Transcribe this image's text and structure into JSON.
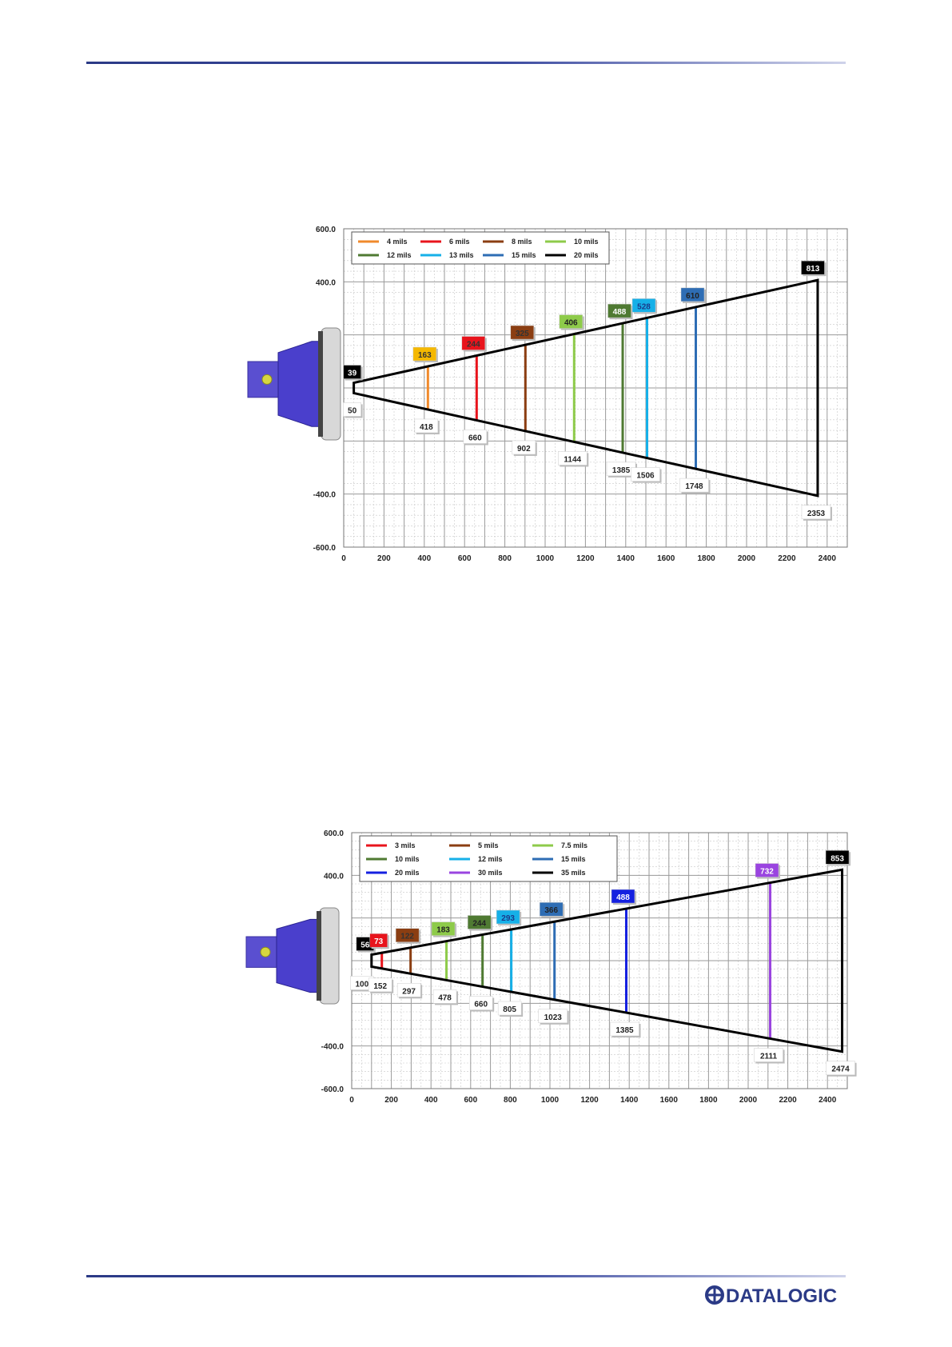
{
  "brand": {
    "name": "DATALOGIC",
    "color": "#2b3a86"
  },
  "chart_data": [
    {
      "type": "line",
      "x": {
        "range": [
          0,
          2500
        ],
        "ticks": [
          0,
          200,
          400,
          600,
          800,
          1000,
          1200,
          1400,
          1600,
          1800,
          2000,
          2200,
          2400
        ]
      },
      "y": {
        "range": [
          -600,
          600
        ],
        "ticks": [
          600,
          400,
          -400,
          -600
        ],
        "tick_labels": [
          "600.0",
          "400.0",
          "-400.0",
          "-600.0"
        ]
      },
      "grid": true,
      "legend_position": "top-left",
      "legend_columns": 4,
      "series": [
        {
          "name": "4 mils",
          "color": "#f08a2c",
          "top_label": "163",
          "bottom_label": "418",
          "x": 418,
          "label_color": "#f5b800",
          "label_text_color": "#333333"
        },
        {
          "name": "6 mils",
          "color": "#e8141c",
          "top_label": "244",
          "bottom_label": "660",
          "x": 660,
          "label_color": "#e8141c",
          "label_text_color": "#333333"
        },
        {
          "name": "8 mils",
          "color": "#8b3e12",
          "top_label": "325",
          "bottom_label": "902",
          "x": 902,
          "label_color": "#8b3e12",
          "label_text_color": "#333333"
        },
        {
          "name": "10 mils",
          "color": "#8ecb4a",
          "top_label": "406",
          "bottom_label": "1144",
          "x": 1144,
          "label_color": "#8ecb4a",
          "label_text_color": "#222222"
        },
        {
          "name": "12 mils",
          "color": "#4f7a32",
          "top_label": "488",
          "bottom_label": "1385",
          "x": 1385,
          "label_color": "#4f7a32",
          "label_text_color": "#ffffff"
        },
        {
          "name": "13 mils",
          "color": "#16b0e8",
          "top_label": "528",
          "bottom_label": "1506",
          "x": 1506,
          "label_color": "#16b0e8",
          "label_text_color": "#1b3a8a"
        },
        {
          "name": "15 mils",
          "color": "#2e6db4",
          "top_label": "610",
          "bottom_label": "1748",
          "x": 1748,
          "label_color": "#2e6db4",
          "label_text_color": "#222222"
        },
        {
          "name": "20 mils",
          "color": "#000000",
          "top_label": "813",
          "bottom_label": "2353",
          "x": 2353,
          "label_color": "#000000",
          "label_text_color": "#ffffff"
        }
      ],
      "envelope": {
        "near_x": 50,
        "far_x": 2353,
        "near_half_width": 19.5,
        "far_half_width": 406.5,
        "near_top_label": "39",
        "near_bottom_label": "50"
      }
    },
    {
      "type": "line",
      "x": {
        "range": [
          0,
          2500
        ],
        "ticks": [
          0,
          200,
          400,
          600,
          800,
          1000,
          1200,
          1400,
          1600,
          1800,
          2000,
          2200,
          2400
        ]
      },
      "y": {
        "range": [
          -600,
          600
        ],
        "ticks": [
          600,
          400,
          -400,
          -600
        ],
        "tick_labels": [
          "600.0",
          "400.0",
          "-400.0",
          "-600.0"
        ]
      },
      "grid": true,
      "legend_position": "top-left",
      "legend_columns": 3,
      "series": [
        {
          "name": "3 mils",
          "color": "#e8141c",
          "top_label": "73",
          "bottom_label": "152",
          "x": 152,
          "label_color": "#e8141c",
          "label_text_color": "#ffffff"
        },
        {
          "name": "5 mils",
          "color": "#8b3e12",
          "top_label": "122",
          "bottom_label": "297",
          "x": 297,
          "label_color": "#8b3e12",
          "label_text_color": "#333333"
        },
        {
          "name": "7.5 mils",
          "color": "#8ecb4a",
          "top_label": "183",
          "bottom_label": "478",
          "x": 478,
          "label_color": "#8ecb4a",
          "label_text_color": "#222222"
        },
        {
          "name": "10 mils",
          "color": "#4f7a32",
          "top_label": "244",
          "bottom_label": "660",
          "x": 660,
          "label_color": "#4f7a32",
          "label_text_color": "#222222"
        },
        {
          "name": "12 mils",
          "color": "#16b0e8",
          "top_label": "293",
          "bottom_label": "805",
          "x": 805,
          "label_color": "#16b0e8",
          "label_text_color": "#1b3a8a"
        },
        {
          "name": "15 mils",
          "color": "#2e6db4",
          "top_label": "366",
          "bottom_label": "1023",
          "x": 1023,
          "label_color": "#2e6db4",
          "label_text_color": "#222222"
        },
        {
          "name": "20 mils",
          "color": "#1420e0",
          "top_label": "488",
          "bottom_label": "1385",
          "x": 1385,
          "label_color": "#1420e0",
          "label_text_color": "#ffffff"
        },
        {
          "name": "30 mils",
          "color": "#9a44e0",
          "top_label": "732",
          "bottom_label": "2111",
          "x": 2111,
          "label_color": "#9a44e0",
          "label_text_color": "#ffffff"
        },
        {
          "name": "35 mils",
          "color": "#000000",
          "top_label": "853",
          "bottom_label": "2474",
          "x": 2474,
          "label_color": "#000000",
          "label_text_color": "#ffffff"
        }
      ],
      "envelope": {
        "near_x": 100,
        "far_x": 2474,
        "near_half_width": 28,
        "far_half_width": 426.5,
        "near_top_label": "56",
        "near_bottom_label": "100"
      }
    }
  ]
}
